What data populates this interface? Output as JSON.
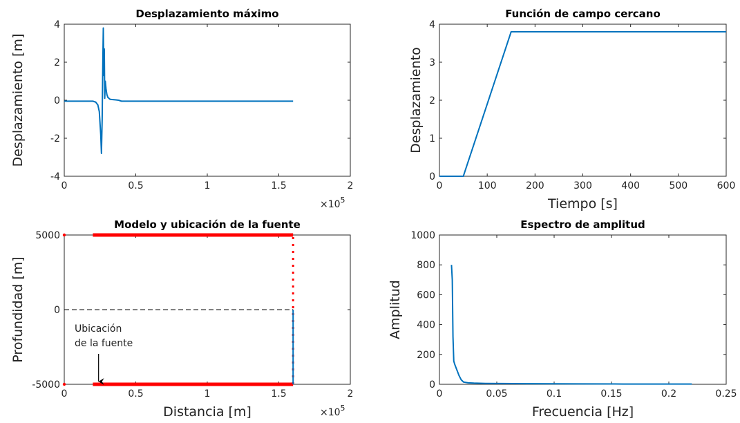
{
  "chart_data": [
    {
      "id": "p1",
      "type": "line",
      "title": "Desplazamiento máximo",
      "xlabel": "",
      "ylabel": "Desplazamiento [m]",
      "xlim": [
        0,
        200000
      ],
      "ylim": [
        -4,
        4
      ],
      "xticks": [
        0,
        50000,
        100000,
        150000,
        200000
      ],
      "xtick_labels": [
        "0",
        "0.5",
        "1",
        "1.5",
        "2"
      ],
      "yticks": [
        -4,
        -2,
        0,
        2,
        4
      ],
      "ytick_labels": [
        "-4",
        "-2",
        "0",
        "2",
        "4"
      ],
      "x_exponent": "×10^5",
      "series": [
        {
          "color": "#0072BD",
          "x": [
            0,
            20000,
            22000,
            23500,
            24500,
            25500,
            26000,
            26500,
            27000,
            27300,
            27700,
            28000,
            28300,
            28700,
            29200,
            29800,
            30500,
            32000,
            34000,
            36000,
            38000,
            40000,
            45000,
            100000,
            160000
          ],
          "y": [
            -0.05,
            -0.05,
            -0.1,
            -0.25,
            -0.6,
            -1.8,
            -2.8,
            -1.0,
            2.2,
            3.8,
            1.3,
            2.7,
            0.1,
            1.0,
            0.6,
            0.3,
            0.15,
            0.05,
            0.03,
            0.02,
            0.0,
            -0.05,
            -0.05,
            -0.05,
            -0.05
          ]
        }
      ]
    },
    {
      "id": "p2",
      "type": "line",
      "title": "Función de campo cercano",
      "xlabel": "Tiempo [s]",
      "ylabel": "Desplazamiento",
      "xlim": [
        0,
        600
      ],
      "ylim": [
        0,
        4
      ],
      "xticks": [
        0,
        100,
        200,
        300,
        400,
        500,
        600
      ],
      "xtick_labels": [
        "0",
        "100",
        "200",
        "300",
        "400",
        "500",
        "600"
      ],
      "yticks": [
        0,
        1,
        2,
        3,
        4
      ],
      "ytick_labels": [
        "0",
        "1",
        "2",
        "3",
        "4"
      ],
      "series": [
        {
          "color": "#0072BD",
          "x": [
            0,
            50,
            150,
            600
          ],
          "y": [
            0,
            0,
            3.8,
            3.8
          ]
        }
      ]
    },
    {
      "id": "p3",
      "type": "line",
      "title": "Modelo y ubicación de la fuente",
      "xlabel": "Distancia [m]",
      "ylabel": "Profundidad [m]",
      "xlim": [
        0,
        200000
      ],
      "ylim": [
        -5000,
        5000
      ],
      "xticks": [
        0,
        50000,
        100000,
        150000,
        200000
      ],
      "xtick_labels": [
        "0",
        "0.5",
        "1",
        "1.5",
        "2"
      ],
      "yticks": [
        -5000,
        0,
        5000
      ],
      "ytick_labels": [
        "-5000",
        "0",
        "5000"
      ],
      "x_exponent": "×10^5",
      "annotation": {
        "lines": [
          "Ubicación",
          "de la fuente"
        ],
        "arrow_x": 24000,
        "arrow_y": -5000
      },
      "series": [
        {
          "color": "#FF0000",
          "style": "solid",
          "x": [
            20000,
            160000
          ],
          "y": [
            5000,
            5000
          ]
        },
        {
          "color": "#FF0000",
          "style": "solid",
          "x": [
            20000,
            160000
          ],
          "y": [
            -5000,
            -5000
          ]
        },
        {
          "color": "#FF0000",
          "style": "dotted",
          "x": [
            160000,
            160000
          ],
          "y": [
            -5000,
            5000
          ]
        },
        {
          "color": "#0072BD",
          "style": "solid",
          "x": [
            160000,
            160000
          ],
          "y": [
            -5000,
            0
          ]
        },
        {
          "color": "#000000",
          "style": "dashed",
          "x": [
            0,
            160000
          ],
          "y": [
            0,
            0
          ]
        },
        {
          "color": "#FF0000",
          "style": "marker",
          "x": [
            0,
            0
          ],
          "y": [
            5000,
            -5000
          ]
        }
      ]
    },
    {
      "id": "p4",
      "type": "line",
      "title": "Espectro de amplitud",
      "xlabel": "Frecuencia [Hz]",
      "ylabel": "Amplitud",
      "xlim": [
        0,
        0.25
      ],
      "ylim": [
        0,
        1000
      ],
      "xticks": [
        0,
        0.05,
        0.1,
        0.15,
        0.2,
        0.25
      ],
      "xtick_labels": [
        "0",
        "0.05",
        "0.1",
        "0.15",
        "0.2",
        "0.25"
      ],
      "yticks": [
        0,
        200,
        400,
        600,
        800,
        1000
      ],
      "ytick_labels": [
        "0",
        "200",
        "400",
        "600",
        "800",
        "1000"
      ],
      "series": [
        {
          "color": "#0072BD",
          "x": [
            0.0105,
            0.0112,
            0.0118,
            0.0125,
            0.0135,
            0.015,
            0.017,
            0.019,
            0.021,
            0.025,
            0.03,
            0.04,
            0.055,
            0.08,
            0.12,
            0.16,
            0.2,
            0.22
          ],
          "y": [
            800,
            700,
            320,
            155,
            130,
            100,
            60,
            30,
            15,
            10,
            8,
            6,
            5,
            4,
            3,
            2,
            2,
            2
          ]
        }
      ]
    }
  ]
}
